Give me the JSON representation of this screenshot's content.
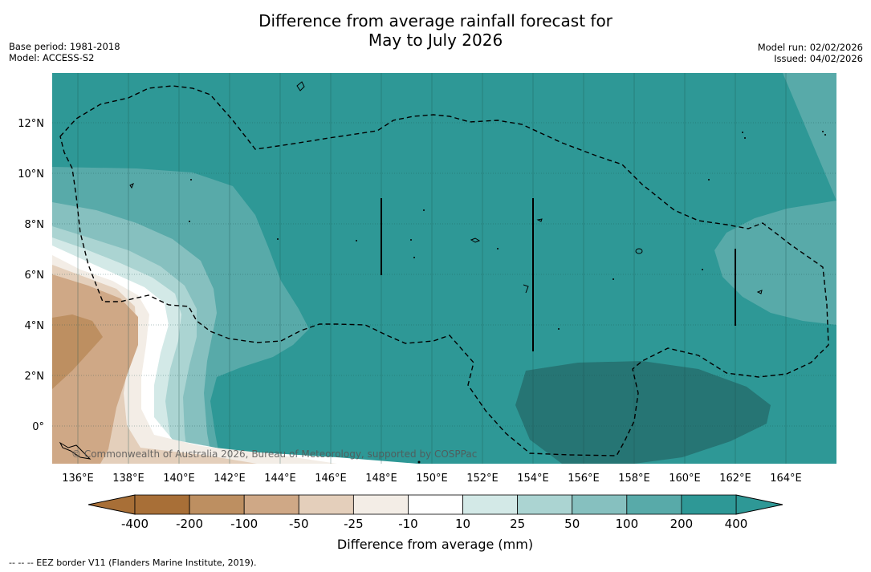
{
  "title": {
    "line1": "Difference from average rainfall forecast for",
    "line2": "May to July 2026"
  },
  "meta": {
    "base_period": "Base period: 1981-2018",
    "model": "Model: ACCESS-S2",
    "model_run": "Model run: 02/02/2026",
    "issued": "Issued: 04/02/2026"
  },
  "map": {
    "lon_labels": [
      "136°E",
      "138°E",
      "140°E",
      "142°E",
      "144°E",
      "146°E",
      "148°E",
      "150°E",
      "152°E",
      "154°E",
      "156°E",
      "158°E",
      "160°E",
      "162°E",
      "164°E"
    ],
    "lat_labels": [
      "12°N",
      "10°N",
      "8°N",
      "6°N",
      "4°N",
      "2°N",
      "0°"
    ],
    "copyright": "© Commonwealth of Australia 2026, Bureau of Meteorology, supported by COSPPac",
    "colors": {
      "c400": "#2e9896",
      "c200": "#58aaa9",
      "c100": "#86c0bf",
      "c50": "#abd4d2",
      "c25": "#d3e9e7",
      "c10": "#ffffff",
      "m10": "#f3ede6",
      "m25": "#e4cfbb",
      "m50": "#cfa886",
      "m100": "#bd8f61",
      "m200": "#a86f37",
      "deep": "#267574"
    }
  },
  "colorbar": {
    "labels": [
      "-400",
      "-200",
      "-100",
      "-50",
      "-25",
      "-10",
      "10",
      "25",
      "50",
      "100",
      "200",
      "400"
    ],
    "colors": [
      "#a86f37",
      "#bd8f61",
      "#cfa886",
      "#e4cfbb",
      "#f3ede6",
      "#ffffff",
      "#d3e9e7",
      "#abd4d2",
      "#86c0bf",
      "#58aaa9",
      "#2e9896"
    ],
    "title": "Difference from average (mm)"
  },
  "footer": "--  --  -- EEZ border V11 (Flanders Marine Institute, 2019)."
}
